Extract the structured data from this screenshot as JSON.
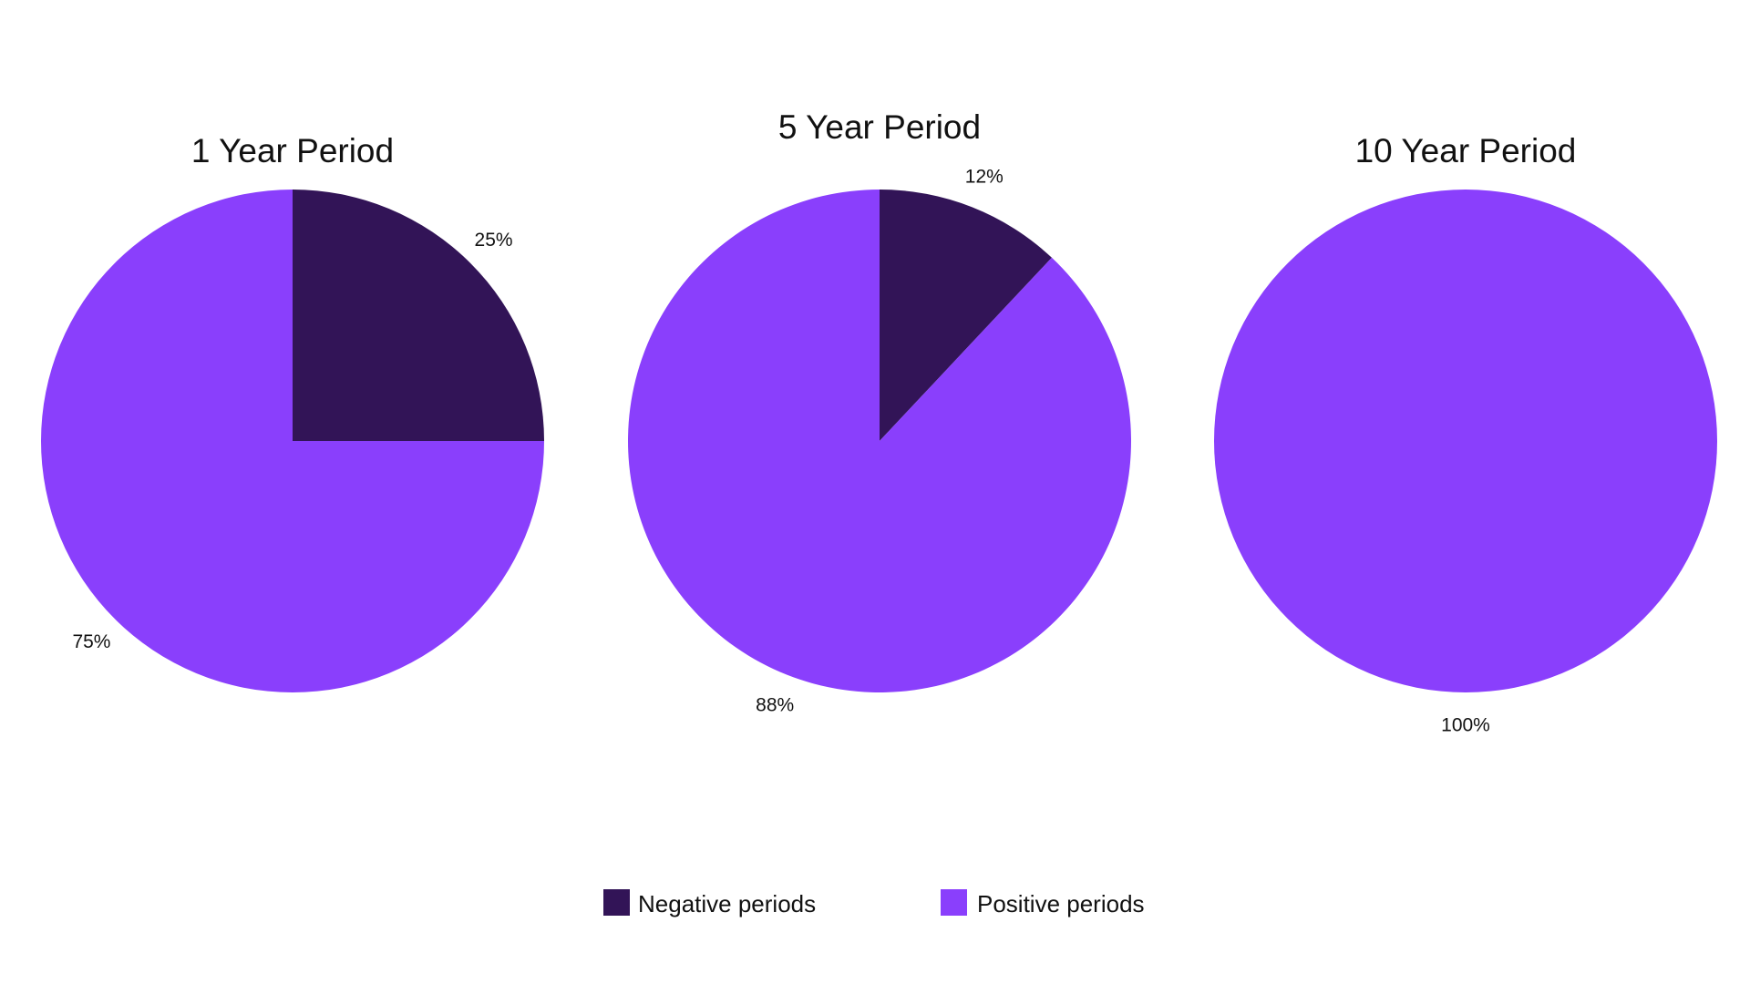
{
  "chart_data": [
    {
      "type": "pie",
      "title": "1 Year Period",
      "categories": [
        "Negative periods",
        "Positive periods"
      ],
      "values": [
        25,
        75
      ],
      "labels": [
        "25%",
        "75%"
      ]
    },
    {
      "type": "pie",
      "title": "5 Year Period",
      "categories": [
        "Negative periods",
        "Positive periods"
      ],
      "values": [
        12,
        88
      ],
      "labels": [
        "12%",
        "88%"
      ]
    },
    {
      "type": "pie",
      "title": "10 Year Period",
      "categories": [
        "Negative periods",
        "Positive periods"
      ],
      "values": [
        0,
        100
      ],
      "labels": [
        "",
        "100%"
      ]
    }
  ],
  "legend": {
    "placement": "bottom-center",
    "items": [
      {
        "label": "Negative periods",
        "color": "#321457"
      },
      {
        "label": "Positive periods",
        "color": "#8a3ffc"
      }
    ]
  }
}
